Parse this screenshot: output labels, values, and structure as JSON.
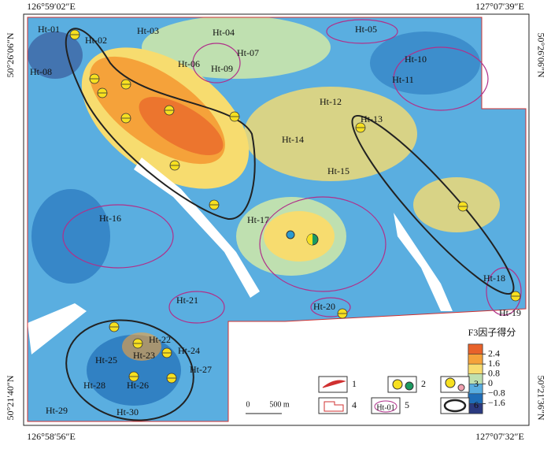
{
  "map": {
    "coords": {
      "top_left": "126°59′02″E",
      "top_right": "127°07′39″E",
      "bottom_left": "126°58′56″E",
      "bottom_right": "127°07′32″E",
      "left_top": "50°26′06″N",
      "left_bottom": "50°21′40″N",
      "right_top": "50°26′06″N",
      "right_bottom": "50°21′36″N"
    },
    "labels": [
      "Ht-01",
      "Ht-02",
      "Ht-03",
      "Ht-04",
      "Ht-05",
      "Ht-06",
      "Ht-07",
      "Ht-08",
      "Ht-09",
      "Ht-10",
      "Ht-11",
      "Ht-12",
      "Ht-13",
      "Ht-14",
      "Ht-15",
      "Ht-16",
      "Ht-17",
      "Ht-18",
      "Ht-19",
      "Ht-20",
      "Ht-21",
      "Ht-22",
      "Ht-23",
      "Ht-24",
      "Ht-25",
      "Ht-26",
      "Ht-27",
      "Ht-28",
      "Ht-29",
      "Ht-30"
    ],
    "legend": {
      "title": "F3因子得分",
      "ticks": [
        "2.4",
        "1.6",
        "0.8",
        "0",
        "−0.8",
        "−1.6"
      ],
      "colors": [
        "#e8622a",
        "#f5a23a",
        "#f7dc6f",
        "#bfe0b0",
        "#5aaee0",
        "#1f6db7",
        "#2b3a80"
      ],
      "items": [
        "1",
        "2",
        "3",
        "4",
        "5",
        "6"
      ],
      "sample": "Ht-01"
    },
    "scale": {
      "zero": "0",
      "length": "500 m"
    }
  }
}
